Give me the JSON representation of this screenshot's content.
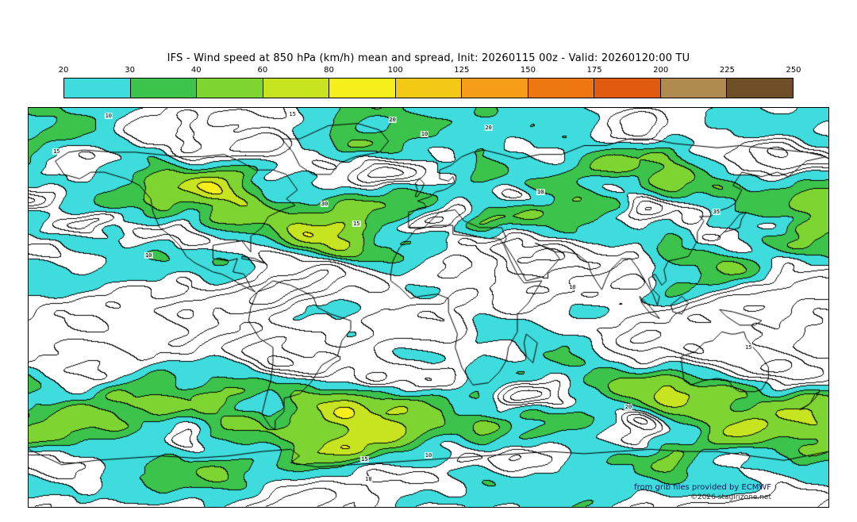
{
  "title": "IFS - Wind speed at 850 hPa (km/h) mean and spread, Init: 20260115 00z - Valid: 20260120:00 TU",
  "colorbar": {
    "tick_labels": [
      "20",
      "30",
      "40",
      "60",
      "80",
      "100",
      "125",
      "150",
      "175",
      "200",
      "225",
      "250"
    ],
    "segment_colors": [
      "#3edcdc",
      "#3cc34c",
      "#7ed431",
      "#c8e420",
      "#f6ef1b",
      "#f3c916",
      "#f59d18",
      "#ef7712",
      "#e05a10",
      "#b08a4e",
      "#6f4f28"
    ]
  },
  "attribution": {
    "line1": "from grib files provided by ECMWF",
    "line2": "©2026 stagirizone.net"
  },
  "chart_data": {
    "type": "heatmap",
    "title": "IFS - Wind speed at 850 hPa (km/h) mean and spread",
    "init": "20260115 00z",
    "valid": "20260120:00 TU",
    "units": "km/h",
    "projection": "equirectangular",
    "lon_range": [
      -180,
      180
    ],
    "lat_range": [
      -90,
      90
    ],
    "fill_levels": [
      20,
      30,
      40,
      60,
      80,
      100,
      125,
      150,
      175,
      200,
      225,
      250
    ],
    "fill_colors": [
      "#3edcdc",
      "#3cc34c",
      "#7ed431",
      "#c8e420",
      "#f6ef1b",
      "#f3c916",
      "#f59d18",
      "#ef7712",
      "#e05a10",
      "#b08a4e",
      "#6f4f28"
    ],
    "below_min_color": "#ffffff",
    "contour_line_levels": [
      5,
      10,
      15,
      20,
      30,
      40,
      60,
      80,
      100,
      125,
      150
    ],
    "contour_line_color": "#000000",
    "coastline_color": "#000000",
    "contour_labels": [
      {
        "value": "10",
        "x": 10,
        "y": 2
      },
      {
        "value": "15",
        "x": 33,
        "y": 1.5
      },
      {
        "value": "20",
        "x": 45.5,
        "y": 3
      },
      {
        "value": "10",
        "x": 49.5,
        "y": 6.5
      },
      {
        "value": "20",
        "x": 57.5,
        "y": 5
      },
      {
        "value": "15",
        "x": 3.5,
        "y": 11
      },
      {
        "value": "10",
        "x": 64,
        "y": 21
      },
      {
        "value": "35",
        "x": 86,
        "y": 26
      },
      {
        "value": "30",
        "x": 37,
        "y": 24
      },
      {
        "value": "15",
        "x": 41,
        "y": 29
      },
      {
        "value": "10",
        "x": 15,
        "y": 37
      },
      {
        "value": "10",
        "x": 68,
        "y": 45
      },
      {
        "value": "15",
        "x": 90,
        "y": 60
      },
      {
        "value": "20",
        "x": 75,
        "y": 75
      },
      {
        "value": "10",
        "x": 50,
        "y": 87
      },
      {
        "value": "15",
        "x": 42,
        "y": 88
      },
      {
        "value": "10",
        "x": 42.5,
        "y": 93
      }
    ],
    "coastlines": [
      [
        [
          -168,
          66
        ],
        [
          -164,
          60
        ],
        [
          -157,
          58
        ],
        [
          -152,
          61
        ],
        [
          -146,
          61
        ],
        [
          -136,
          58
        ],
        [
          -130,
          55
        ],
        [
          -125,
          49
        ],
        [
          -124,
          43
        ],
        [
          -121,
          36
        ],
        [
          -117,
          33
        ],
        [
          -112,
          28
        ],
        [
          -109,
          23
        ],
        [
          -105,
          20
        ],
        [
          -97,
          16
        ],
        [
          -93,
          15
        ],
        [
          -89,
          13
        ],
        [
          -84,
          10
        ],
        [
          -78,
          7
        ],
        [
          -80,
          9
        ],
        [
          -83,
          15
        ],
        [
          -88,
          16
        ],
        [
          -86,
          22
        ],
        [
          -90,
          21
        ],
        [
          -97,
          22
        ],
        [
          -97,
          28
        ],
        [
          -91,
          29
        ],
        [
          -84,
          30
        ],
        [
          -80,
          25
        ],
        [
          -80,
          32
        ],
        [
          -75,
          36
        ],
        [
          -72,
          41
        ],
        [
          -66,
          44
        ],
        [
          -60,
          46
        ],
        [
          -64,
          49
        ],
        [
          -59,
          53
        ],
        [
          -64,
          60
        ],
        [
          -70,
          62
        ],
        [
          -78,
          62
        ],
        [
          -85,
          66
        ],
        [
          -92,
          69
        ],
        [
          -102,
          68
        ],
        [
          -112,
          68
        ],
        [
          -122,
          69
        ],
        [
          -132,
          70
        ],
        [
          -142,
          70
        ],
        [
          -155,
          71
        ],
        [
          -162,
          70
        ],
        [
          -168,
          66
        ]
      ],
      [
        [
          -58,
          64
        ],
        [
          -52,
          60
        ],
        [
          -44,
          60
        ],
        [
          -40,
          65
        ],
        [
          -33,
          68
        ],
        [
          -22,
          70
        ],
        [
          -18,
          75
        ],
        [
          -22,
          80
        ],
        [
          -32,
          83
        ],
        [
          -45,
          82
        ],
        [
          -58,
          76
        ],
        [
          -66,
          76
        ],
        [
          -61,
          70
        ],
        [
          -58,
          64
        ]
      ],
      [
        [
          -77,
          7
        ],
        [
          -70,
          12
        ],
        [
          -62,
          10
        ],
        [
          -52,
          5
        ],
        [
          -50,
          0
        ],
        [
          -44,
          -3
        ],
        [
          -35,
          -6
        ],
        [
          -35,
          -10
        ],
        [
          -39,
          -15
        ],
        [
          -41,
          -22
        ],
        [
          -48,
          -26
        ],
        [
          -53,
          -34
        ],
        [
          -58,
          -39
        ],
        [
          -65,
          -41
        ],
        [
          -65,
          -47
        ],
        [
          -69,
          -51
        ],
        [
          -69,
          -55
        ],
        [
          -71,
          -54
        ],
        [
          -75,
          -48
        ],
        [
          -73,
          -40
        ],
        [
          -71,
          -33
        ],
        [
          -70,
          -25
        ],
        [
          -70,
          -18
        ],
        [
          -76,
          -14
        ],
        [
          -81,
          -6
        ],
        [
          -80,
          0
        ],
        [
          -77,
          7
        ]
      ],
      [
        [
          -6,
          35
        ],
        [
          3,
          37
        ],
        [
          11,
          37
        ],
        [
          11,
          33
        ],
        [
          20,
          32
        ],
        [
          28,
          31
        ],
        [
          32,
          31
        ],
        [
          34,
          28
        ],
        [
          37,
          21
        ],
        [
          40,
          15
        ],
        [
          43,
          11
        ],
        [
          51,
          12
        ],
        [
          45,
          2
        ],
        [
          40,
          -3
        ],
        [
          40,
          -11
        ],
        [
          36,
          -18
        ],
        [
          35,
          -24
        ],
        [
          32,
          -29
        ],
        [
          27,
          -34
        ],
        [
          20,
          -35
        ],
        [
          18,
          -32
        ],
        [
          15,
          -27
        ],
        [
          12,
          -18
        ],
        [
          13,
          -12
        ],
        [
          9,
          -2
        ],
        [
          9,
          4
        ],
        [
          4,
          6
        ],
        [
          -4,
          5
        ],
        [
          -8,
          4
        ],
        [
          -13,
          9
        ],
        [
          -17,
          12
        ],
        [
          -17,
          15
        ],
        [
          -16,
          21
        ],
        [
          -13,
          27
        ],
        [
          -9,
          31
        ],
        [
          -6,
          35
        ]
      ],
      [
        [
          -9,
          43
        ],
        [
          -9,
          36
        ],
        [
          -2,
          36
        ],
        [
          5,
          43
        ],
        [
          12,
          44
        ],
        [
          16,
          39
        ],
        [
          23,
          36
        ],
        [
          27,
          36
        ],
        [
          33,
          36
        ],
        [
          35,
          31
        ],
        [
          34,
          29
        ],
        [
          39,
          21
        ],
        [
          44,
          12
        ],
        [
          52,
          14
        ],
        [
          59,
          22
        ],
        [
          56,
          26
        ],
        [
          48,
          29
        ],
        [
          57,
          25
        ],
        [
          62,
          25
        ],
        [
          67,
          24
        ],
        [
          72,
          20
        ],
        [
          73,
          16
        ],
        [
          76,
          11
        ],
        [
          78,
          8
        ],
        [
          80,
          13
        ],
        [
          82,
          17
        ],
        [
          87,
          22
        ],
        [
          91,
          22
        ],
        [
          94,
          18
        ],
        [
          98,
          11
        ],
        [
          101,
          6
        ],
        [
          103,
          1
        ],
        [
          104,
          5
        ],
        [
          100,
          9
        ],
        [
          99,
          13
        ],
        [
          102,
          15
        ],
        [
          105,
          10
        ],
        [
          107,
          12
        ],
        [
          106,
          17
        ],
        [
          108,
          21
        ],
        [
          113,
          22
        ],
        [
          117,
          23
        ],
        [
          121,
          30
        ],
        [
          121,
          34
        ],
        [
          124,
          39
        ],
        [
          122,
          41
        ],
        [
          127,
          41
        ],
        [
          129,
          43
        ],
        [
          135,
          45
        ],
        [
          138,
          47
        ],
        [
          141,
          53
        ],
        [
          137,
          55
        ],
        [
          141,
          61
        ],
        [
          150,
          59
        ],
        [
          157,
          61
        ],
        [
          162,
          59
        ],
        [
          170,
          66
        ],
        [
          179,
          68
        ],
        [
          170,
          70
        ],
        [
          160,
          71
        ],
        [
          150,
          72
        ],
        [
          140,
          73
        ],
        [
          130,
          72
        ],
        [
          120,
          73
        ],
        [
          110,
          74
        ],
        [
          100,
          76
        ],
        [
          90,
          76
        ],
        [
          80,
          73
        ],
        [
          70,
          73
        ],
        [
          60,
          69
        ],
        [
          50,
          69
        ],
        [
          40,
          67
        ],
        [
          33,
          69
        ],
        [
          25,
          71
        ],
        [
          20,
          70
        ],
        [
          15,
          68
        ],
        [
          10,
          64
        ],
        [
          5,
          62
        ],
        [
          5,
          58
        ],
        [
          9,
          57
        ],
        [
          11,
          59
        ],
        [
          12,
          56
        ],
        [
          9,
          54
        ],
        [
          7,
          53
        ],
        [
          3,
          52
        ],
        [
          1,
          50
        ],
        [
          -2,
          49
        ],
        [
          -5,
          48
        ],
        [
          -2,
          47
        ],
        [
          -1,
          45
        ],
        [
          -9,
          43
        ]
      ],
      [
        [
          -5,
          50
        ],
        [
          -3,
          53
        ],
        [
          -2,
          56
        ],
        [
          -4,
          58
        ],
        [
          -6,
          56
        ],
        [
          -5,
          53
        ],
        [
          -6,
          50
        ],
        [
          -5,
          50
        ]
      ],
      [
        [
          114,
          -22
        ],
        [
          114,
          -26
        ],
        [
          115,
          -33
        ],
        [
          118,
          -35
        ],
        [
          124,
          -33
        ],
        [
          130,
          -32
        ],
        [
          135,
          -33
        ],
        [
          137,
          -36
        ],
        [
          140,
          -38
        ],
        [
          144,
          -38
        ],
        [
          147,
          -38
        ],
        [
          150,
          -37
        ],
        [
          153,
          -32
        ],
        [
          153,
          -27
        ],
        [
          151,
          -24
        ],
        [
          148,
          -20
        ],
        [
          146,
          -18
        ],
        [
          143,
          -14
        ],
        [
          142,
          -11
        ],
        [
          138,
          -12
        ],
        [
          136,
          -12
        ],
        [
          132,
          -11
        ],
        [
          128,
          -15
        ],
        [
          124,
          -16
        ],
        [
          120,
          -20
        ],
        [
          114,
          -22
        ]
      ],
      [
        [
          167,
          -46
        ],
        [
          171,
          -44
        ],
        [
          174,
          -41
        ],
        [
          176,
          -38
        ],
        [
          174,
          -39
        ],
        [
          172,
          -43
        ],
        [
          168,
          -46
        ],
        [
          167,
          -46
        ]
      ],
      [
        [
          44,
          -12
        ],
        [
          49,
          -16
        ],
        [
          47,
          -25
        ],
        [
          44,
          -22
        ],
        [
          43,
          -16
        ],
        [
          44,
          -12
        ]
      ],
      [
        [
          130,
          31
        ],
        [
          133,
          34
        ],
        [
          137,
          35
        ],
        [
          140,
          36
        ],
        [
          141,
          40
        ],
        [
          143,
          43
        ],
        [
          140,
          42
        ],
        [
          136,
          37
        ],
        [
          132,
          33
        ],
        [
          130,
          31
        ]
      ],
      [
        [
          109,
          1
        ],
        [
          114,
          5
        ],
        [
          117,
          2
        ],
        [
          114,
          -3
        ],
        [
          110,
          -2
        ],
        [
          109,
          1
        ]
      ],
      [
        [
          95,
          5
        ],
        [
          100,
          0
        ],
        [
          104,
          -5
        ],
        [
          100,
          -3
        ],
        [
          96,
          2
        ],
        [
          95,
          5
        ]
      ],
      [
        [
          131,
          -1
        ],
        [
          137,
          -2
        ],
        [
          144,
          -4
        ],
        [
          150,
          -6
        ],
        [
          147,
          -8
        ],
        [
          140,
          -8
        ],
        [
          134,
          -4
        ],
        [
          131,
          -1
        ]
      ],
      [
        [
          -84,
          22
        ],
        [
          -78,
          21
        ],
        [
          -74,
          20
        ],
        [
          -78,
          22
        ],
        [
          -84,
          23
        ],
        [
          -84,
          22
        ]
      ],
      [
        [
          -180,
          -64
        ],
        [
          -165,
          -71
        ],
        [
          -150,
          -69
        ],
        [
          -135,
          -68
        ],
        [
          -120,
          -67
        ],
        [
          -105,
          -68
        ],
        [
          -90,
          -67
        ],
        [
          -75,
          -65
        ],
        [
          -62,
          -64
        ],
        [
          -58,
          -67
        ],
        [
          -62,
          -70
        ],
        [
          -50,
          -72
        ],
        [
          -35,
          -71
        ],
        [
          -20,
          -70
        ],
        [
          -5,
          -69
        ],
        [
          10,
          -68
        ],
        [
          25,
          -67
        ],
        [
          40,
          -66
        ],
        [
          55,
          -65
        ],
        [
          70,
          -66
        ],
        [
          85,
          -65
        ],
        [
          100,
          -64
        ],
        [
          115,
          -65
        ],
        [
          130,
          -65
        ],
        [
          145,
          -67
        ],
        [
          160,
          -69
        ],
        [
          175,
          -66
        ],
        [
          180,
          -65
        ]
      ]
    ]
  }
}
